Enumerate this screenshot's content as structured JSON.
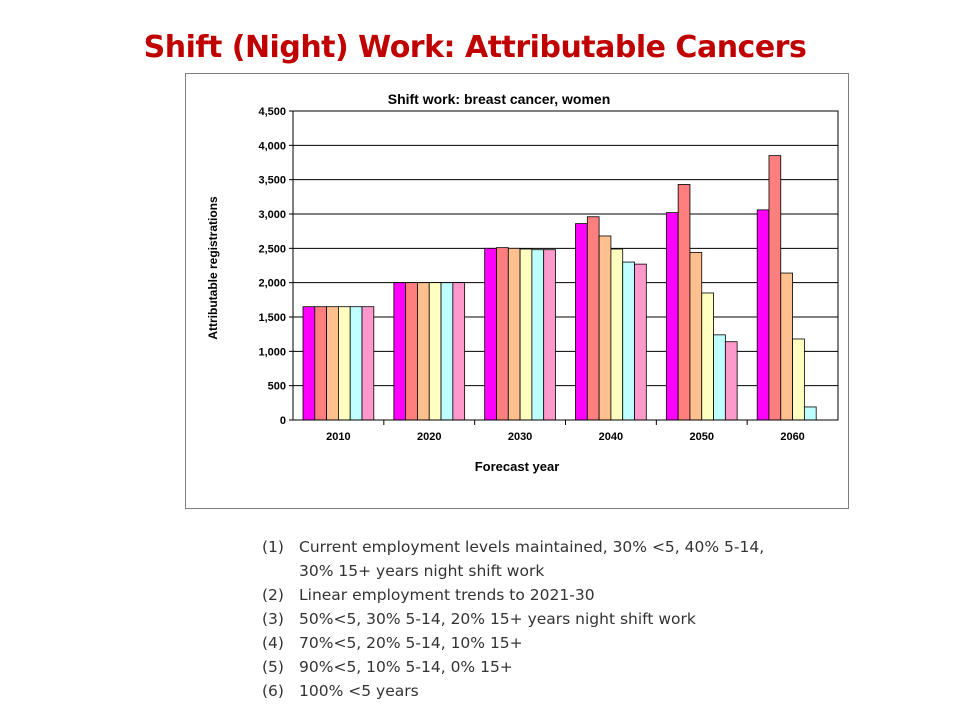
{
  "slide": {
    "title": "Shift (Night) Work: Attributable Cancers"
  },
  "chart_data": {
    "type": "bar",
    "title": "Shift work: breast cancer, women",
    "xlabel": "Forecast year",
    "ylabel": "Attributable registrations",
    "categories": [
      "2010",
      "2020",
      "2030",
      "2040",
      "2050",
      "2060"
    ],
    "ylim": [
      0,
      4500
    ],
    "yticks": [
      0,
      500,
      1000,
      1500,
      2000,
      2500,
      3000,
      3500,
      4000,
      4500
    ],
    "ytick_labels": [
      "0",
      "500",
      "1,000",
      "1,500",
      "2,000",
      "2,500",
      "3,000",
      "3,500",
      "4,000",
      "4,500"
    ],
    "grid": true,
    "legend": "none",
    "series": [
      {
        "color": "#ff00ff",
        "values": [
          1650,
          2000,
          2500,
          2860,
          3020,
          3060
        ]
      },
      {
        "color": "#ff7f7f",
        "values": [
          1650,
          2000,
          2510,
          2960,
          3430,
          3850
        ]
      },
      {
        "color": "#ffc08f",
        "values": [
          1650,
          2000,
          2500,
          2680,
          2440,
          2140
        ]
      },
      {
        "color": "#ffffc0",
        "values": [
          1650,
          2000,
          2490,
          2490,
          1850,
          1180
        ]
      },
      {
        "color": "#c0ffff",
        "values": [
          1650,
          2000,
          2480,
          2300,
          1240,
          190
        ]
      },
      {
        "color": "#ff99cc",
        "values": [
          1650,
          2000,
          2480,
          2270,
          1140,
          null
        ]
      }
    ]
  },
  "notes": [
    {
      "num": "(1)",
      "text": "Current employment levels maintained, 30% <5, 40% 5-14, 30% 15+ years night shift work"
    },
    {
      "num": "(2)",
      "text": "Linear employment trends to 2021-30"
    },
    {
      "num": "(3)",
      "text": "50%<5, 30% 5-14, 20% 15+ years night shift work"
    },
    {
      "num": "(4)",
      "text": "70%<5, 20% 5-14, 10% 15+"
    },
    {
      "num": "(5)",
      "text": "90%<5, 10% 5-14, 0% 15+"
    },
    {
      "num": "(6)",
      "text": "100% <5 years"
    }
  ]
}
